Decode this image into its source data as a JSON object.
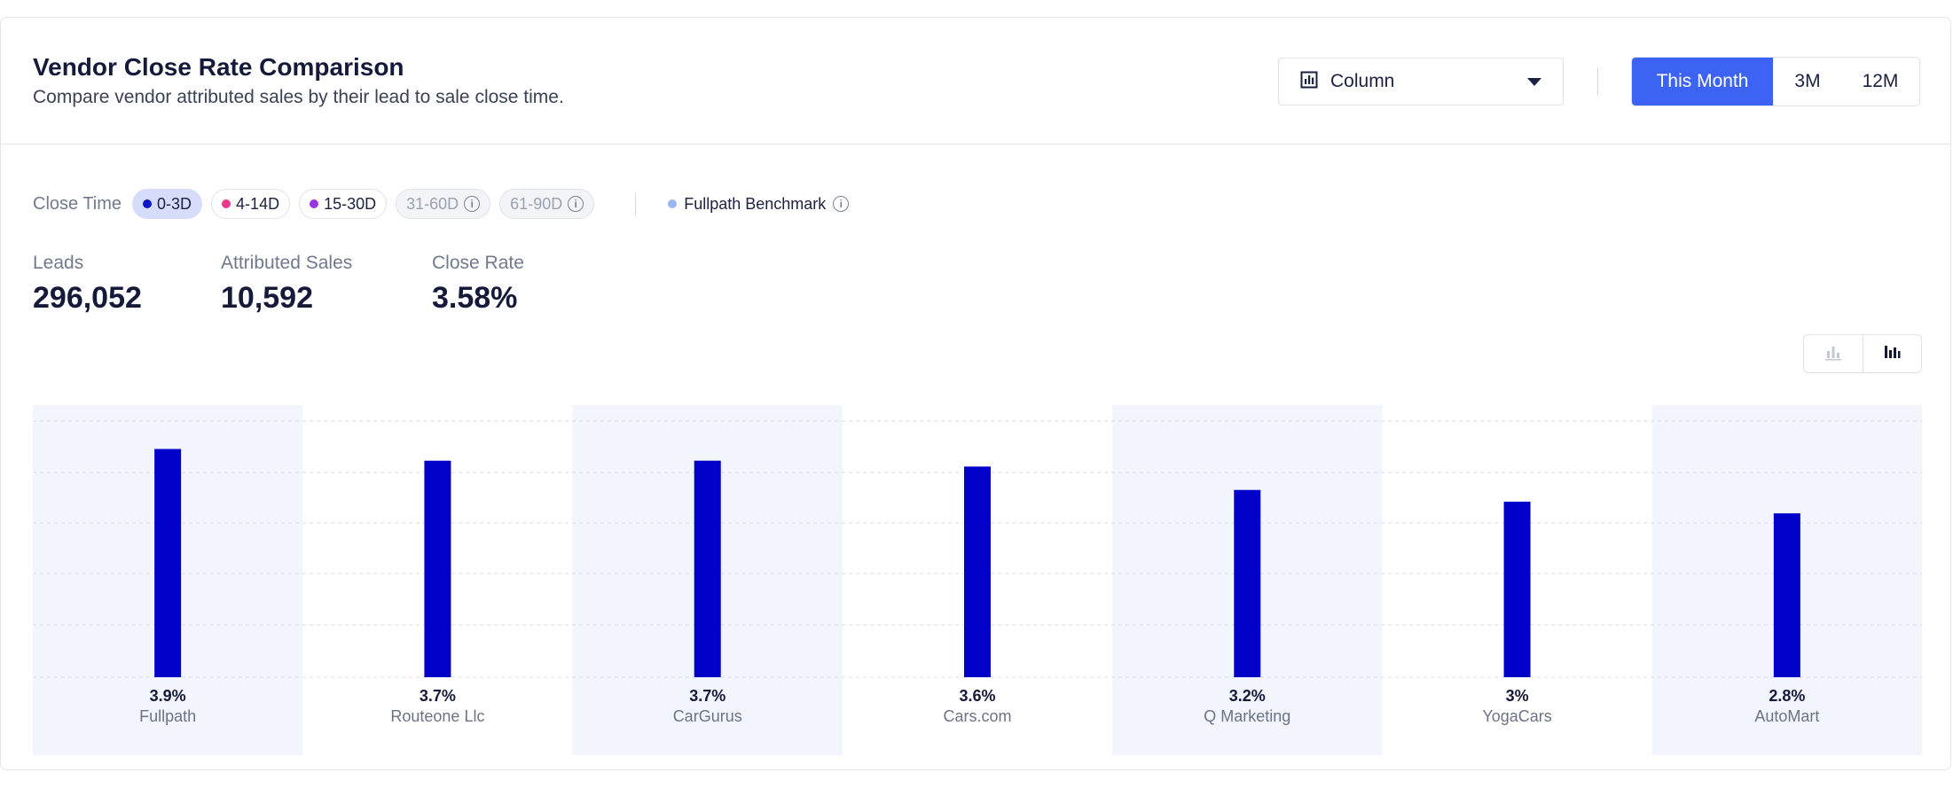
{
  "header": {
    "title": "Vendor Close Rate Comparison",
    "subtitle": "Compare vendor attributed sales by their lead to sale close time."
  },
  "chart_type_select": {
    "value": "Column",
    "icon": "column-chart-icon"
  },
  "period_tabs": [
    {
      "label": "This Month",
      "active": true
    },
    {
      "label": "3M",
      "active": false
    },
    {
      "label": "12M",
      "active": false
    }
  ],
  "filters": {
    "label": "Close Time",
    "chips": [
      {
        "label": "0-3D",
        "color": "#0a14c4",
        "selected": true
      },
      {
        "label": "4-14D",
        "color": "#e8398a",
        "selected": false
      },
      {
        "label": "15-30D",
        "color": "#9b32e6",
        "selected": false
      },
      {
        "label": "31-60D",
        "disabled": true
      },
      {
        "label": "61-90D",
        "disabled": true
      }
    ],
    "benchmark": {
      "label": "Fullpath Benchmark",
      "color": "#9ab7f5"
    }
  },
  "stats": [
    {
      "label": "Leads",
      "value": "296,052"
    },
    {
      "label": "Attributed Sales",
      "value": "10,592"
    },
    {
      "label": "Close Rate",
      "value": "3.58%"
    }
  ],
  "colors": {
    "accent": "#3d63f5",
    "bar": "#0000c8",
    "band": "#f2f5fd"
  },
  "chart_data": {
    "type": "bar",
    "categories": [
      "Fullpath",
      "Routeone Llc",
      "CarGurus",
      "Cars.com",
      "Q Marketing",
      "YogaCars",
      "AutoMart"
    ],
    "values": [
      3.9,
      3.7,
      3.7,
      3.6,
      3.2,
      3.0,
      2.8
    ],
    "data_labels": [
      "3.9%",
      "3.7%",
      "3.7%",
      "3.6%",
      "3.2%",
      "3%",
      "2.8%"
    ],
    "ylim": [
      0,
      4.65
    ],
    "grid": true,
    "legend": "none"
  }
}
